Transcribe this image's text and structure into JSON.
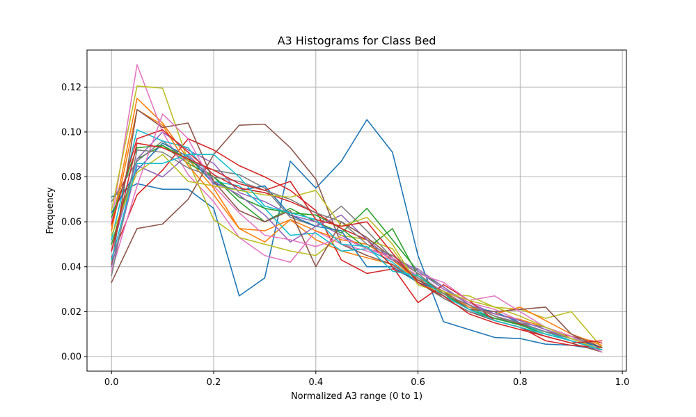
{
  "chart_data": {
    "type": "line",
    "title": "A3 Histograms for Class Bed",
    "xlabel": "Normalized A3 range (0 to 1)",
    "ylabel": "Frequency",
    "xlim": [
      -0.048,
      1.008
    ],
    "ylim": [
      -0.0065,
      0.1365
    ],
    "xticks": [
      0.0,
      0.2,
      0.4,
      0.6,
      0.8,
      1.0
    ],
    "xtick_labels": [
      "0.0",
      "0.2",
      "0.4",
      "0.6",
      "0.8",
      "1.0"
    ],
    "yticks": [
      0.0,
      0.02,
      0.04,
      0.06,
      0.08,
      0.1,
      0.12
    ],
    "ytick_labels": [
      "0.00",
      "0.02",
      "0.04",
      "0.06",
      "0.08",
      "0.10",
      "0.12"
    ],
    "grid": true,
    "x": [
      0.0,
      0.05,
      0.1,
      0.15,
      0.2,
      0.25,
      0.3,
      0.35,
      0.4,
      0.45,
      0.5,
      0.55,
      0.6,
      0.65,
      0.7,
      0.75,
      0.8,
      0.85,
      0.9,
      0.96
    ],
    "series": [
      {
        "color": "#1f77b4",
        "values": [
          0.071,
          0.077,
          0.0745,
          0.0745,
          0.066,
          0.027,
          0.035,
          0.087,
          0.075,
          0.087,
          0.1055,
          0.091,
          0.045,
          0.0155,
          0.012,
          0.0085,
          0.008,
          0.0055,
          0.005,
          0.003
        ]
      },
      {
        "color": "#ff7f0e",
        "values": [
          0.058,
          0.115,
          0.104,
          0.088,
          0.075,
          0.057,
          0.051,
          0.061,
          0.052,
          0.047,
          0.044,
          0.041,
          0.035,
          0.029,
          0.022,
          0.019,
          0.0165,
          0.013,
          0.009,
          0.004
        ]
      },
      {
        "color": "#2ca02c",
        "values": [
          0.05,
          0.088,
          0.094,
          0.086,
          0.08,
          0.069,
          0.06,
          0.066,
          0.06,
          0.055,
          0.066,
          0.052,
          0.038,
          0.031,
          0.023,
          0.018,
          0.014,
          0.011,
          0.007,
          0.003
        ]
      },
      {
        "color": "#d62728",
        "values": [
          0.044,
          0.072,
          0.083,
          0.097,
          0.092,
          0.085,
          0.08,
          0.074,
          0.065,
          0.043,
          0.037,
          0.039,
          0.034,
          0.028,
          0.023,
          0.018,
          0.0145,
          0.011,
          0.009,
          0.006
        ]
      },
      {
        "color": "#9467bd",
        "values": [
          0.047,
          0.088,
          0.1,
          0.092,
          0.086,
          0.073,
          0.069,
          0.063,
          0.06,
          0.054,
          0.048,
          0.045,
          0.038,
          0.03,
          0.024,
          0.019,
          0.016,
          0.012,
          0.008,
          0.004
        ]
      },
      {
        "color": "#8c564b",
        "values": [
          0.033,
          0.057,
          0.059,
          0.07,
          0.09,
          0.103,
          0.1035,
          0.093,
          0.079,
          0.05,
          0.045,
          0.041,
          0.033,
          0.026,
          0.02,
          0.016,
          0.013,
          0.009,
          0.006,
          0.002
        ]
      },
      {
        "color": "#e377c2",
        "values": [
          0.06,
          0.13,
          0.1,
          0.081,
          0.069,
          0.053,
          0.045,
          0.042,
          0.056,
          0.05,
          0.047,
          0.043,
          0.036,
          0.029,
          0.024,
          0.021,
          0.016,
          0.012,
          0.008,
          0.003
        ]
      },
      {
        "color": "#7f7f7f",
        "values": [
          0.069,
          0.087,
          0.096,
          0.087,
          0.083,
          0.081,
          0.075,
          0.062,
          0.058,
          0.067,
          0.056,
          0.044,
          0.035,
          0.026,
          0.02,
          0.017,
          0.015,
          0.013,
          0.009,
          0.004
        ]
      },
      {
        "color": "#bcbd22",
        "values": [
          0.065,
          0.1205,
          0.1195,
          0.087,
          0.061,
          0.053,
          0.05,
          0.047,
          0.045,
          0.054,
          0.052,
          0.048,
          0.032,
          0.028,
          0.027,
          0.022,
          0.021,
          0.017,
          0.02,
          0.004
        ]
      },
      {
        "color": "#17becf",
        "values": [
          0.052,
          0.101,
          0.096,
          0.093,
          0.078,
          0.076,
          0.066,
          0.054,
          0.055,
          0.047,
          0.048,
          0.042,
          0.033,
          0.027,
          0.022,
          0.017,
          0.014,
          0.011,
          0.007,
          0.003
        ]
      },
      {
        "color": "#1f77b4",
        "values": [
          0.064,
          0.083,
          0.095,
          0.089,
          0.077,
          0.074,
          0.076,
          0.063,
          0.058,
          0.056,
          0.04,
          0.04,
          0.033,
          0.029,
          0.022,
          0.02,
          0.015,
          0.011,
          0.008,
          0.004
        ]
      },
      {
        "color": "#ff7f0e",
        "values": [
          0.056,
          0.11,
          0.103,
          0.085,
          0.072,
          0.057,
          0.056,
          0.061,
          0.056,
          0.052,
          0.05,
          0.043,
          0.034,
          0.029,
          0.022,
          0.019,
          0.022,
          0.016,
          0.01,
          0.005
        ]
      },
      {
        "color": "#2ca02c",
        "values": [
          0.062,
          0.093,
          0.094,
          0.088,
          0.08,
          0.071,
          0.066,
          0.064,
          0.063,
          0.057,
          0.048,
          0.057,
          0.036,
          0.028,
          0.021,
          0.017,
          0.014,
          0.01,
          0.007,
          0.003
        ]
      },
      {
        "color": "#d62728",
        "values": [
          0.059,
          0.097,
          0.101,
          0.091,
          0.081,
          0.075,
          0.073,
          0.069,
          0.064,
          0.057,
          0.052,
          0.04,
          0.024,
          0.032,
          0.025,
          0.016,
          0.013,
          0.007,
          0.005,
          0.004
        ]
      },
      {
        "color": "#9467bd",
        "values": [
          0.04,
          0.085,
          0.08,
          0.09,
          0.078,
          0.072,
          0.063,
          0.051,
          0.058,
          0.063,
          0.052,
          0.043,
          0.039,
          0.031,
          0.023,
          0.019,
          0.016,
          0.012,
          0.008,
          0.003
        ]
      },
      {
        "color": "#8c564b",
        "values": [
          0.041,
          0.11,
          0.102,
          0.104,
          0.078,
          0.065,
          0.06,
          0.065,
          0.04,
          0.06,
          0.053,
          0.044,
          0.034,
          0.029,
          0.021,
          0.02,
          0.021,
          0.022,
          0.01,
          0.004
        ]
      },
      {
        "color": "#e377c2",
        "values": [
          0.038,
          0.076,
          0.108,
          0.097,
          0.076,
          0.064,
          0.054,
          0.052,
          0.049,
          0.053,
          0.048,
          0.044,
          0.037,
          0.033,
          0.025,
          0.027,
          0.02,
          0.013,
          0.009,
          0.002
        ]
      },
      {
        "color": "#7f7f7f",
        "values": [
          0.036,
          0.092,
          0.091,
          0.084,
          0.08,
          0.078,
          0.074,
          0.07,
          0.064,
          0.06,
          0.05,
          0.045,
          0.037,
          0.028,
          0.023,
          0.018,
          0.015,
          0.011,
          0.008,
          0.003
        ]
      },
      {
        "color": "#bcbd22",
        "values": [
          0.054,
          0.082,
          0.09,
          0.078,
          0.076,
          0.074,
          0.072,
          0.071,
          0.074,
          0.058,
          0.062,
          0.05,
          0.032,
          0.029,
          0.025,
          0.022,
          0.018,
          0.013,
          0.008,
          0.003
        ]
      },
      {
        "color": "#17becf",
        "values": [
          0.043,
          0.086,
          0.086,
          0.09,
          0.09,
          0.08,
          0.067,
          0.064,
          0.061,
          0.05,
          0.049,
          0.038,
          0.036,
          0.027,
          0.021,
          0.016,
          0.013,
          0.01,
          0.007,
          0.003
        ]
      },
      {
        "color": "#d62728",
        "values": [
          0.047,
          0.095,
          0.093,
          0.088,
          0.083,
          0.077,
          0.074,
          0.078,
          0.061,
          0.058,
          0.06,
          0.046,
          0.033,
          0.027,
          0.019,
          0.015,
          0.012,
          0.009,
          0.006,
          0.007
        ]
      }
    ]
  }
}
